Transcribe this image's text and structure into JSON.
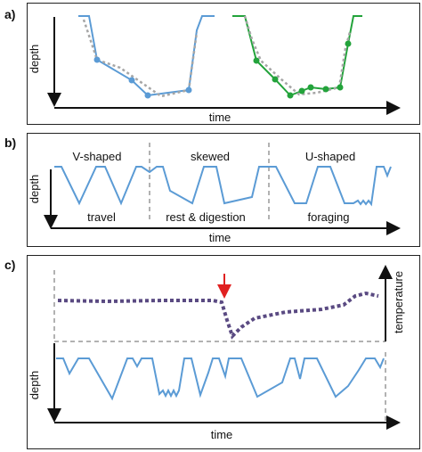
{
  "panels": {
    "a": {
      "label": "a)",
      "ylabel": "depth",
      "xlabel": "time"
    },
    "b": {
      "label": "b)",
      "ylabel": "depth",
      "xlabel": "time",
      "shapes": [
        "V-shaped",
        "skewed",
        "U-shaped"
      ],
      "activities": [
        "travel",
        "rest & digestion",
        "foraging"
      ]
    },
    "c": {
      "label": "c)",
      "ylabel": "depth",
      "xlabel": "time",
      "ylabel2": "temperature"
    }
  },
  "colors": {
    "blue": "#5b9bd5",
    "green": "#23a33b",
    "gray_dotted": "#a6a6a6",
    "purple": "#5a4a82",
    "red_arrow": "#e02020",
    "axis": "#111111"
  }
}
